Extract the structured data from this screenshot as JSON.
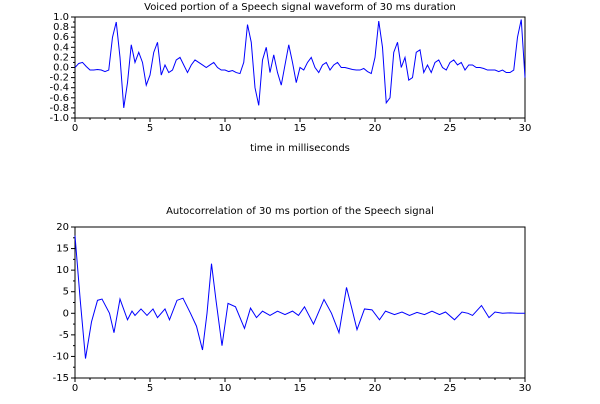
{
  "chart_data": [
    {
      "type": "line",
      "title": "Voiced portion of a Speech signal waveform of 30 ms duration",
      "xlabel": "time in milliseconds",
      "color": "#0000ff",
      "x": [
        0,
        0.25,
        0.5,
        0.75,
        1,
        1.25,
        1.5,
        1.75,
        2,
        2.25,
        2.5,
        2.75,
        3,
        3.25,
        3.5,
        3.75,
        4,
        4.25,
        4.5,
        4.75,
        5,
        5.25,
        5.5,
        5.75,
        6,
        6.25,
        6.5,
        6.75,
        7,
        7.25,
        7.5,
        7.75,
        8,
        8.25,
        8.5,
        8.75,
        9,
        9.25,
        9.5,
        9.75,
        10,
        10.25,
        10.5,
        10.75,
        11,
        11.25,
        11.5,
        11.75,
        12,
        12.25,
        12.5,
        12.75,
        13,
        13.25,
        13.5,
        13.75,
        14,
        14.25,
        14.5,
        14.75,
        15,
        15.25,
        15.5,
        15.75,
        16,
        16.25,
        16.5,
        16.75,
        17,
        17.25,
        17.5,
        17.75,
        18,
        18.25,
        18.5,
        18.75,
        19,
        19.25,
        19.5,
        19.75,
        20,
        20.25,
        20.5,
        20.75,
        21,
        21.25,
        21.5,
        21.75,
        22,
        22.25,
        22.5,
        22.75,
        23,
        23.25,
        23.5,
        23.75,
        24,
        24.25,
        24.5,
        24.75,
        25,
        25.25,
        25.5,
        25.75,
        26,
        26.25,
        26.5,
        26.75,
        27,
        27.25,
        27.5,
        27.75,
        28,
        28.25,
        28.5,
        28.75,
        29,
        29.25,
        29.5,
        29.75,
        30
      ],
      "values": [
        0.0,
        0.08,
        0.1,
        0.02,
        -0.05,
        -0.05,
        -0.04,
        -0.05,
        -0.08,
        -0.05,
        0.6,
        0.9,
        0.2,
        -0.8,
        -0.3,
        0.45,
        0.1,
        0.3,
        0.1,
        -0.35,
        -0.15,
        0.3,
        0.5,
        -0.15,
        0.05,
        -0.1,
        -0.05,
        0.15,
        0.2,
        0.05,
        -0.1,
        0.05,
        0.15,
        0.1,
        0.05,
        0.0,
        0.05,
        0.1,
        0.0,
        -0.05,
        -0.05,
        -0.08,
        -0.06,
        -0.1,
        -0.12,
        0.1,
        0.85,
        0.5,
        -0.4,
        -0.75,
        0.15,
        0.4,
        -0.1,
        0.25,
        -0.1,
        -0.35,
        0.05,
        0.45,
        0.1,
        -0.3,
        0.0,
        -0.05,
        0.1,
        0.2,
        0.0,
        -0.1,
        0.05,
        0.1,
        -0.05,
        0.05,
        0.1,
        0.0,
        0.0,
        -0.02,
        -0.04,
        -0.05,
        -0.05,
        -0.02,
        -0.08,
        -0.12,
        0.2,
        0.92,
        0.4,
        -0.7,
        -0.6,
        0.3,
        0.5,
        0.0,
        0.2,
        -0.25,
        -0.2,
        0.3,
        0.35,
        -0.1,
        0.05,
        -0.1,
        0.1,
        0.15,
        0.0,
        -0.05,
        0.1,
        0.15,
        0.05,
        0.1,
        -0.05,
        0.05,
        0.05,
        0.0,
        0.0,
        -0.02,
        -0.05,
        -0.05,
        -0.05,
        -0.08,
        -0.05,
        -0.1,
        -0.1,
        -0.05,
        0.6,
        0.95,
        -0.2
      ],
      "xlim": [
        0,
        30
      ],
      "xticks": [
        0,
        5,
        10,
        15,
        20,
        25,
        30
      ],
      "ylim": [
        -1,
        1
      ],
      "yticks": [
        {
          "value": -1,
          "label": "-1.0"
        },
        -0.8,
        -0.6,
        -0.4,
        -0.2,
        {
          "value": 0,
          "label": "0.0"
        },
        0.2,
        0.4,
        0.6,
        0.8,
        {
          "value": 1,
          "label": "1.0"
        }
      ]
    },
    {
      "type": "line",
      "title": "Autocorrelation of 30 ms portion of the Speech signal",
      "color": "#0000ff",
      "x": [
        0,
        0.35,
        0.7,
        1.1,
        1.5,
        1.8,
        2.3,
        2.6,
        3.0,
        3.5,
        3.8,
        4.0,
        4.4,
        4.8,
        5.2,
        5.5,
        6.0,
        6.3,
        6.8,
        7.2,
        7.7,
        8.1,
        8.5,
        8.8,
        9.1,
        9.4,
        9.8,
        10.2,
        10.7,
        11.3,
        11.7,
        12.1,
        12.5,
        13.0,
        13.5,
        14.0,
        14.5,
        14.9,
        15.3,
        15.9,
        16.6,
        17.1,
        17.6,
        18.1,
        18.5,
        18.8,
        19.3,
        19.8,
        20.3,
        20.7,
        21.3,
        21.8,
        22.3,
        22.8,
        23.3,
        23.8,
        24.3,
        24.7,
        25.3,
        25.8,
        26.2,
        26.5,
        27.1,
        27.6,
        28.0,
        28.5,
        29.0,
        29.5,
        30.0
      ],
      "values": [
        18,
        3,
        -10.5,
        -2,
        3,
        3.3,
        0,
        -4.5,
        3.3,
        -1.5,
        0.5,
        -0.5,
        1,
        -0.5,
        1,
        -1,
        1,
        -1.5,
        3,
        3.5,
        0,
        -3,
        -8.5,
        0,
        11.5,
        3,
        -7.5,
        2.3,
        1.5,
        -3.5,
        1.2,
        -1,
        0.5,
        -0.5,
        0.5,
        -0.3,
        0.5,
        -0.5,
        1.5,
        -2.5,
        3.2,
        0,
        -4.5,
        6,
        0.5,
        -3.8,
        1,
        0.8,
        -1.5,
        0.5,
        -0.3,
        0.3,
        -0.5,
        0.2,
        -0.3,
        0.5,
        -0.3,
        0.3,
        -1.5,
        0.3,
        0,
        -0.5,
        1.8,
        -1,
        0.3,
        0,
        0.1,
        0,
        0
      ],
      "xlim": [
        0,
        30
      ],
      "xticks": [
        0,
        5,
        10,
        15,
        20,
        25,
        30
      ],
      "ylim": [
        -15,
        20
      ],
      "yticks": [
        -15,
        -10,
        -5,
        0,
        5,
        10,
        15,
        20
      ]
    }
  ]
}
